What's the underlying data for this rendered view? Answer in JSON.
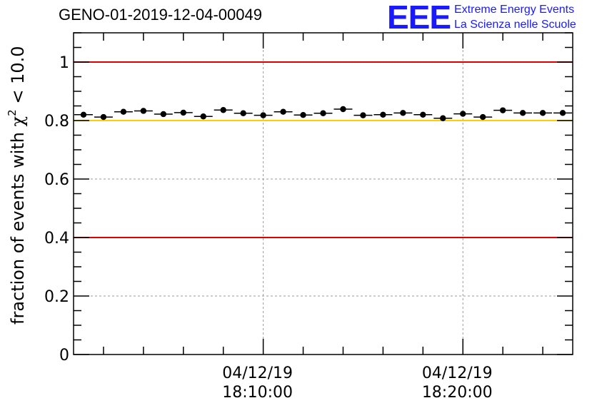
{
  "chart_data": {
    "type": "scatter",
    "title": "GENO-01-2019-12-04-00049",
    "ylabel_prefix": "fraction of events with ",
    "ylabel_symbol": "χ",
    "ylabel_sup": "2",
    "ylabel_suffix": " < 10.0",
    "ylim": [
      0,
      1.1
    ],
    "yticks": [
      "0",
      "0.2",
      "0.4",
      "0.6",
      "0.8",
      "1"
    ],
    "ytick_values": [
      0,
      0.2,
      0.4,
      0.6,
      0.8,
      1.0
    ],
    "xlim": [
      0,
      25
    ],
    "xticks": [
      {
        "pos": 9.5,
        "date": "04/12/19",
        "time": "18:10:00"
      },
      {
        "pos": 19.5,
        "date": "04/12/19",
        "time": "18:20:00"
      }
    ],
    "grid": true,
    "reference_lines": [
      {
        "y": 1.0,
        "color": "#e00000"
      },
      {
        "y": 0.8,
        "color": "#ffcc00"
      },
      {
        "y": 0.4,
        "color": "#e00000"
      }
    ],
    "x": [
      0.5,
      1.5,
      2.5,
      3.5,
      4.5,
      5.5,
      6.5,
      7.5,
      8.5,
      9.5,
      10.5,
      11.5,
      12.5,
      13.5,
      14.5,
      15.5,
      16.5,
      17.5,
      18.5,
      19.5,
      20.5,
      21.5,
      22.5,
      23.5,
      24.5
    ],
    "values": [
      0.82,
      0.812,
      0.83,
      0.833,
      0.822,
      0.827,
      0.814,
      0.836,
      0.825,
      0.818,
      0.83,
      0.819,
      0.825,
      0.839,
      0.818,
      0.82,
      0.826,
      0.82,
      0.808,
      0.823,
      0.812,
      0.835,
      0.826,
      0.826,
      0.826
    ]
  },
  "logo": {
    "letters": "EEE",
    "line1": "Extreme Energy Events",
    "line2": "La Scienza nelle Scuole"
  }
}
